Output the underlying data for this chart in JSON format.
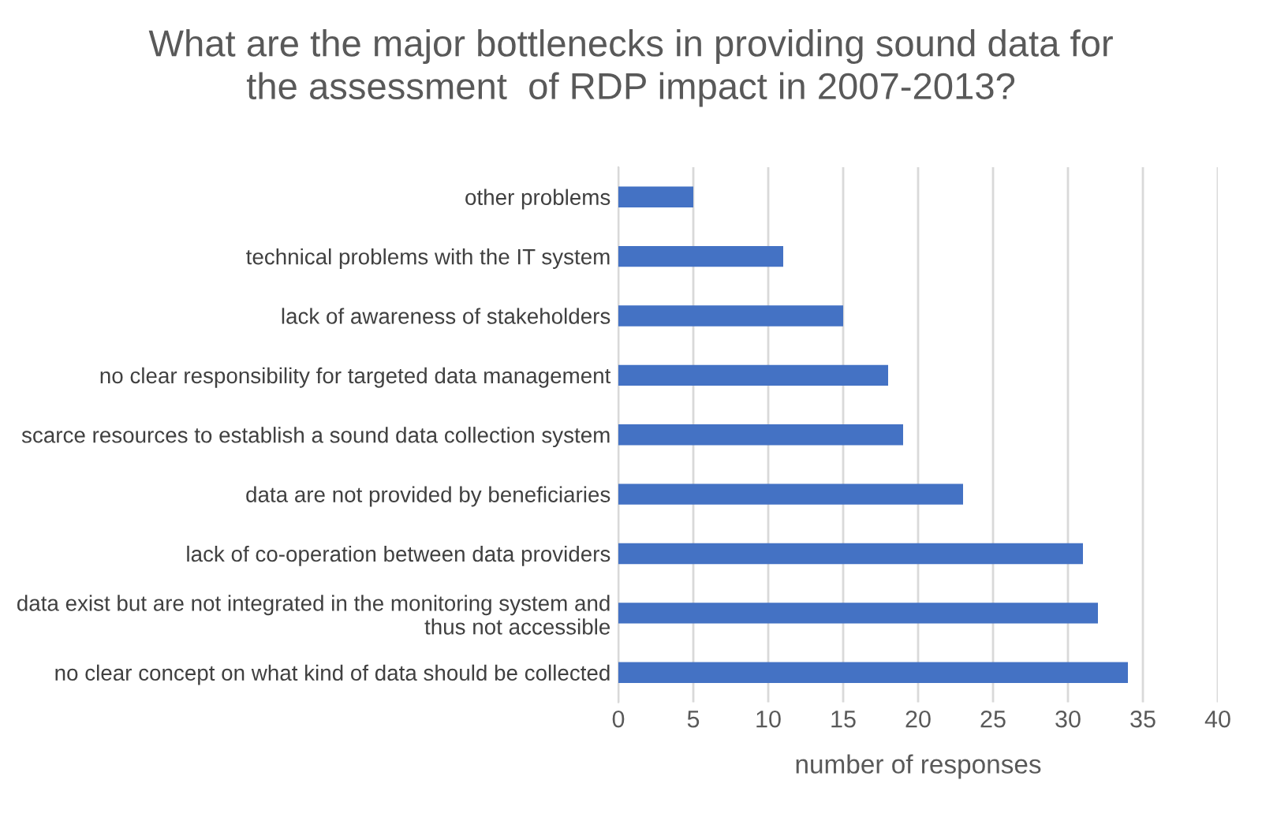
{
  "chart_data": {
    "type": "bar",
    "orientation": "horizontal",
    "title": "What are the major bottlenecks in providing sound data for\nthe assessment  of RDP impact in 2007-2013?",
    "xlabel": "number of responses",
    "categories": [
      "other problems",
      "technical problems with the IT system",
      "lack of awareness of stakeholders",
      "no clear responsibility for targeted data management",
      "scarce resources to establish a sound data collection system",
      "data are not provided by beneficiaries",
      "lack of co-operation between data providers",
      "data exist but are not integrated in the monitoring system and\nthus not accessible",
      "no clear concept on what kind of data should be collected"
    ],
    "values": [
      5,
      11,
      15,
      18,
      19,
      23,
      31,
      32,
      34
    ],
    "color": "#4472c4",
    "xlim": [
      0,
      40
    ],
    "xticks": [
      0,
      5,
      10,
      15,
      20,
      25,
      30,
      35,
      40
    ],
    "grid": "x",
    "legend": false
  }
}
